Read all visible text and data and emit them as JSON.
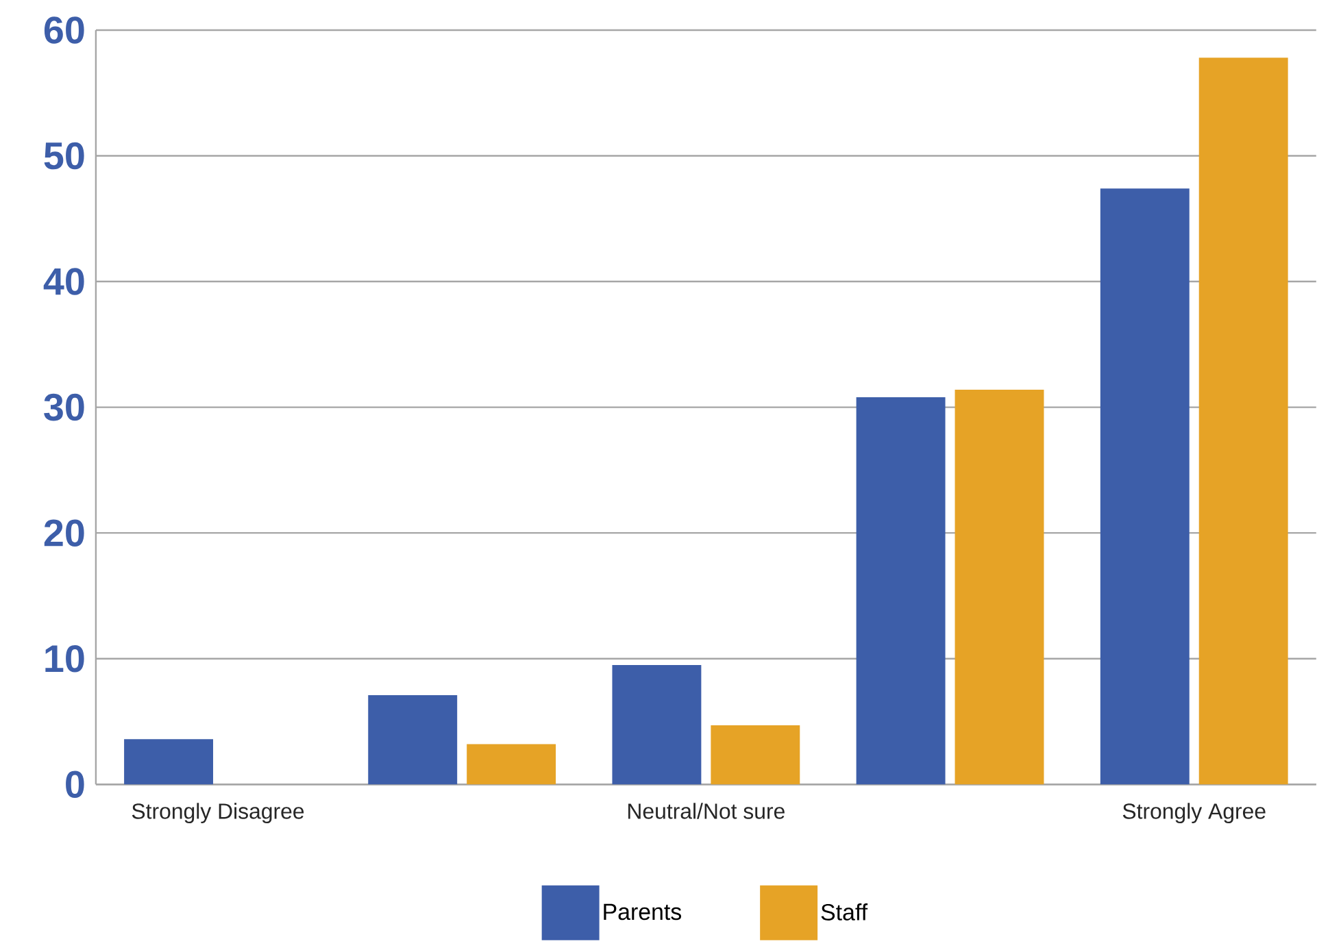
{
  "chart_data": {
    "type": "bar",
    "categories": [
      "Strongly Disagree",
      null,
      "Neutral/Not sure",
      null,
      "Strongly Agree"
    ],
    "series": [
      {
        "name": "Parents",
        "color": "#3d5ea9",
        "values": [
          3.6,
          7.1,
          9.5,
          30.8,
          47.4
        ]
      },
      {
        "name": "Staff",
        "color": "#e6a326",
        "values": [
          0,
          3.2,
          4.7,
          31.4,
          57.8
        ]
      }
    ],
    "ylim": [
      0,
      60
    ],
    "yticks": [
      0,
      10,
      20,
      30,
      40,
      50,
      60
    ],
    "grid": "y",
    "legend": "bottom"
  }
}
